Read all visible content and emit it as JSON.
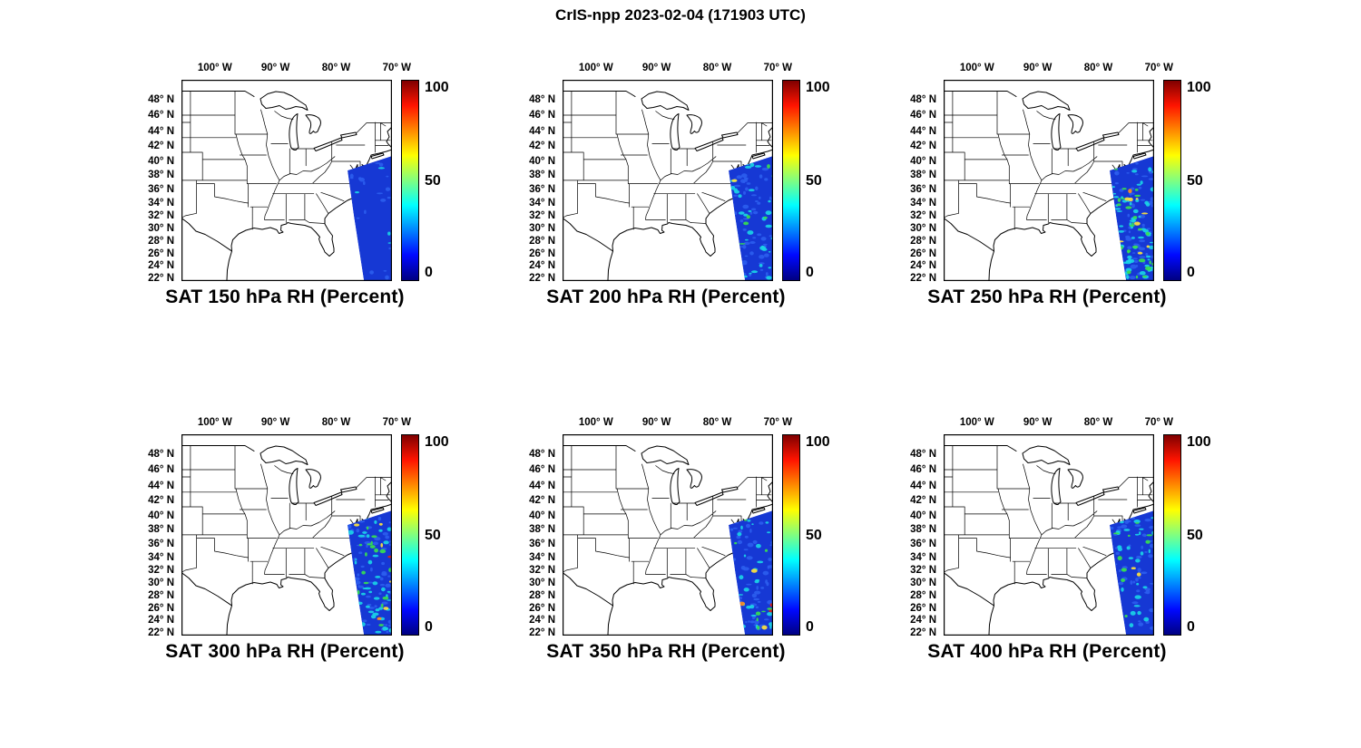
{
  "figure_title": "CrIS-npp 2023-02-04 (171903 UTC)",
  "panels": [
    {
      "title": "SAT 150 hPa RH (Percent)"
    },
    {
      "title": "SAT 200 hPa RH (Percent)"
    },
    {
      "title": "SAT 250 hPa RH (Percent)"
    },
    {
      "title": "SAT 300 hPa RH (Percent)"
    },
    {
      "title": "SAT 350 hPa RH (Percent)"
    },
    {
      "title": "SAT 400 hPa RH (Percent)"
    }
  ],
  "axes": {
    "lat_ticks": [
      "48° N",
      "46° N",
      "44° N",
      "42° N",
      "40° N",
      "38° N",
      "36° N",
      "34° N",
      "32° N",
      "30° N",
      "28° N",
      "26° N",
      "24° N",
      "22° N"
    ],
    "lon_ticks": [
      "100° W",
      "90° W",
      "80° W",
      "70° W"
    ]
  },
  "colorbar": {
    "max_label": "100",
    "mid_label": "50",
    "min_label": "0"
  },
  "colors": {
    "swath_base": "#1638d4",
    "frame": "#000000",
    "background": "#ffffff"
  },
  "chart_data": {
    "type": "heatmap",
    "title": "CrIS-npp 2023-02-04 (171903 UTC)",
    "satellite": "CrIS-npp",
    "date": "2023-02-04",
    "time_utc": "171903",
    "variable": "RH",
    "units": "Percent",
    "colormap": "jet",
    "color_range": [
      0,
      100
    ],
    "colorbar_ticks": [
      0,
      50,
      100
    ],
    "grid": false,
    "legend_position": "vertical colorbar right of each panel",
    "map_extent": {
      "lon_min_w": 105.5,
      "lon_max_w": 70.5,
      "lat_min_n": 21.5,
      "lat_max_n": 50.3
    },
    "lat_ticks_deg_n": [
      48,
      46,
      44,
      42,
      40,
      38,
      36,
      34,
      32,
      30,
      28,
      26,
      24,
      22
    ],
    "lon_ticks_deg_w": [
      100,
      90,
      80,
      70
    ],
    "swath": "NE-SW satellite overpass swath over the NW Atlantic off the US Southeast coast (~37N 71W down to ~22N 80W); land areas contain no retrieval data",
    "panels": [
      {
        "level_hPa": 150,
        "summary": "Nearly uniform very low RH ~0-10% (solid dark blue swath), few faint cyan pixels near northern tip",
        "texture": {
          "lightblue": 18,
          "cyan": 4,
          "green": 0,
          "yellow": 0,
          "orange": 0,
          "red": 0,
          "y_bias": 2.6
        }
      },
      {
        "level_hPa": 200,
        "summary": "Mostly 0-25% with scattered cyan filaments 30-50%, mainly in the northern half of the swath",
        "texture": {
          "lightblue": 55,
          "cyan": 30,
          "green": 6,
          "yellow": 1,
          "orange": 0,
          "red": 0,
          "y_bias": 1.2
        }
      },
      {
        "level_hPa": 250,
        "summary": "Widespread 20-60% cyan/green mottling across the swath, local yellow maxima ~70% south of 30N",
        "texture": {
          "lightblue": 60,
          "cyan": 55,
          "green": 26,
          "yellow": 8,
          "orange": 1,
          "red": 0,
          "y_bias": 1.0
        }
      },
      {
        "level_hPa": 300,
        "summary": "Speckled 10-60%, isolated yellow/orange spots ~70-80% near 27-29N, trace red pixel",
        "texture": {
          "lightblue": 55,
          "cyan": 40,
          "green": 16,
          "yellow": 5,
          "orange": 2,
          "red": 1,
          "y_bias": 1.0
        }
      },
      {
        "level_hPa": 350,
        "summary": "Mostly 5-40% with sparse cyan streaks, isolated red spot ~90% near 27N 78W",
        "texture": {
          "lightblue": 50,
          "cyan": 24,
          "green": 8,
          "yellow": 2,
          "orange": 1,
          "red": 2,
          "y_bias": 1.1
        }
      },
      {
        "level_hPa": 400,
        "summary": "Mostly 5-45% with cyan patches concentrated in the northern half of the swath",
        "texture": {
          "lightblue": 50,
          "cyan": 30,
          "green": 10,
          "yellow": 2,
          "orange": 0,
          "red": 0,
          "y_bias": 1.5
        }
      }
    ]
  }
}
